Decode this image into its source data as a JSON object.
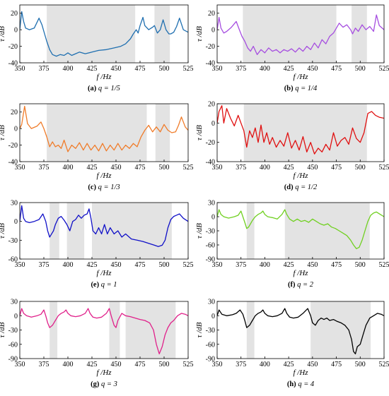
{
  "chart_data": [
    {
      "type": "line",
      "caption_tag": "(a)",
      "caption_text": "q = 1/5",
      "xlabel": "f /Hz",
      "ylabel": "τ /dB",
      "xlim": [
        350,
        525
      ],
      "ylim": [
        -40,
        30
      ],
      "xticks": [
        350,
        375,
        400,
        425,
        450,
        475,
        500,
        525
      ],
      "yticks": [
        -40,
        -20,
        0,
        20
      ],
      "shaded": [
        [
          378,
          470
        ],
        [
          490,
          506
        ]
      ],
      "color": "#1f6fb0",
      "x": [
        350,
        352,
        354,
        356,
        360,
        365,
        370,
        373,
        375,
        378,
        381,
        384,
        388,
        392,
        396,
        400,
        404,
        408,
        412,
        418,
        425,
        432,
        440,
        448,
        455,
        460,
        465,
        468,
        471,
        473,
        475,
        478,
        480,
        484,
        488,
        490,
        493,
        496,
        499,
        502,
        505,
        507,
        510,
        513,
        516,
        520,
        525
      ],
      "y": [
        0,
        22,
        10,
        2,
        0,
        2,
        14,
        6,
        -2,
        -14,
        -24,
        -30,
        -32,
        -30,
        -31,
        -28,
        -31,
        -29,
        -27,
        -29,
        -27,
        -25,
        -24,
        -22,
        -20,
        -17,
        -11,
        -5,
        0,
        -4,
        5,
        15,
        5,
        0,
        3,
        5,
        -4,
        0,
        12,
        0,
        -5,
        -5,
        -3,
        4,
        14,
        0,
        -3
      ]
    },
    {
      "type": "line",
      "caption_tag": "(b)",
      "caption_text": "q = 1/4",
      "xlabel": "f /Hz",
      "ylabel": "τ /dB",
      "xlim": [
        350,
        525
      ],
      "ylim": [
        -40,
        30
      ],
      "xticks": [
        350,
        375,
        400,
        425,
        450,
        475,
        500,
        525
      ],
      "yticks": [
        -40,
        -20,
        0,
        20
      ],
      "shaded": [
        [
          377,
          475
        ],
        [
          491,
          507
        ]
      ],
      "color": "#a64ee0",
      "x": [
        350,
        352,
        354,
        357,
        360,
        365,
        370,
        373,
        376,
        379,
        382,
        385,
        388,
        392,
        396,
        400,
        404,
        408,
        412,
        416,
        420,
        424,
        428,
        432,
        436,
        440,
        444,
        448,
        452,
        456,
        460,
        464,
        468,
        472,
        475,
        478,
        482,
        486,
        490,
        492,
        495,
        498,
        502,
        506,
        510,
        514,
        517,
        520,
        525
      ],
      "y": [
        0,
        15,
        2,
        -4,
        -2,
        3,
        10,
        1,
        -8,
        -14,
        -22,
        -26,
        -20,
        -30,
        -24,
        -28,
        -22,
        -26,
        -24,
        -28,
        -24,
        -26,
        -23,
        -27,
        -22,
        -26,
        -20,
        -24,
        -16,
        -22,
        -12,
        -17,
        -8,
        -4,
        2,
        8,
        3,
        6,
        0,
        -5,
        2,
        -2,
        6,
        0,
        4,
        -2,
        18,
        5,
        0
      ]
    },
    {
      "type": "line",
      "caption_tag": "(c)",
      "caption_text": "q = 1/3",
      "xlabel": "f /Hz",
      "ylabel": "τ /dB",
      "xlim": [
        350,
        525
      ],
      "ylim": [
        -40,
        30
      ],
      "xticks": [
        350,
        375,
        400,
        425,
        450,
        475,
        500,
        525
      ],
      "yticks": [
        -40,
        -20,
        0,
        20
      ],
      "shaded": [
        [
          378,
          482
        ],
        [
          491,
          506
        ]
      ],
      "color": "#f07c2a",
      "x": [
        350,
        352,
        355,
        358,
        362,
        368,
        372,
        375,
        378,
        381,
        384,
        387,
        390,
        393,
        396,
        400,
        404,
        408,
        412,
        416,
        420,
        424,
        428,
        432,
        436,
        440,
        444,
        448,
        452,
        456,
        460,
        464,
        468,
        472,
        476,
        480,
        484,
        488,
        492,
        496,
        500,
        504,
        508,
        512,
        515,
        518,
        522,
        525
      ],
      "y": [
        0,
        5,
        27,
        6,
        0,
        3,
        8,
        0,
        -10,
        -22,
        -16,
        -22,
        -20,
        -24,
        -14,
        -28,
        -20,
        -24,
        -17,
        -26,
        -18,
        -26,
        -20,
        -27,
        -18,
        -27,
        -20,
        -26,
        -18,
        -26,
        -20,
        -24,
        -18,
        -22,
        -10,
        -2,
        4,
        -4,
        2,
        -4,
        5,
        -2,
        -5,
        -4,
        4,
        14,
        2,
        -2
      ]
    },
    {
      "type": "line",
      "caption_tag": "(d)",
      "caption_text": "q = 1/2",
      "xlabel": "f /Hz",
      "ylabel": "τ /dB",
      "xlim": [
        350,
        525
      ],
      "ylim": [
        -40,
        20
      ],
      "xticks": [
        350,
        375,
        400,
        425,
        450,
        475,
        500,
        525
      ],
      "yticks": [
        -40,
        -20,
        0,
        20
      ],
      "shaded": [
        [
          378,
          507
        ]
      ],
      "color": "#e01010",
      "x": [
        350,
        352,
        355,
        357,
        360,
        364,
        368,
        372,
        375,
        378,
        381,
        384,
        387,
        390,
        393,
        396,
        399,
        402,
        405,
        408,
        412,
        416,
        420,
        424,
        428,
        432,
        436,
        440,
        444,
        448,
        452,
        456,
        460,
        464,
        468,
        472,
        476,
        480,
        484,
        488,
        492,
        496,
        500,
        504,
        508,
        512,
        516,
        520,
        525
      ],
      "y": [
        0,
        12,
        18,
        0,
        15,
        5,
        -3,
        8,
        0,
        -8,
        -25,
        -8,
        -15,
        -5,
        -20,
        -2,
        -20,
        -10,
        -22,
        -15,
        -25,
        -18,
        -24,
        -10,
        -26,
        -18,
        -28,
        -14,
        -30,
        -20,
        -32,
        -26,
        -30,
        -22,
        -28,
        -10,
        -24,
        -18,
        -15,
        -22,
        -5,
        -16,
        -20,
        -10,
        10,
        12,
        8,
        6,
        5
      ]
    },
    {
      "type": "line",
      "caption_tag": "(e)",
      "caption_text": "q = 1",
      "xlabel": "f /Hz",
      "ylabel": "τ /dB",
      "xlim": [
        350,
        525
      ],
      "ylim": [
        -60,
        30
      ],
      "xticks": [
        350,
        375,
        400,
        425,
        450,
        475,
        500,
        525
      ],
      "yticks": [
        -60,
        -30,
        0,
        30
      ],
      "shaded": [
        [
          381,
          391
        ],
        [
          399,
          417
        ],
        [
          425,
          508
        ]
      ],
      "color": "#1010c8",
      "x": [
        350,
        352,
        354,
        356,
        360,
        365,
        370,
        374,
        377,
        379,
        381,
        383,
        385,
        387,
        390,
        393,
        396,
        399,
        402,
        405,
        408,
        411,
        414,
        417,
        420,
        422,
        424,
        426,
        429,
        432,
        435,
        438,
        441,
        444,
        448,
        452,
        456,
        460,
        466,
        472,
        478,
        484,
        490,
        494,
        498,
        501,
        504,
        507,
        510,
        513,
        516,
        520,
        525
      ],
      "y": [
        0,
        25,
        5,
        0,
        -2,
        0,
        3,
        12,
        0,
        -15,
        -25,
        -20,
        -15,
        -5,
        5,
        8,
        2,
        -5,
        -15,
        0,
        3,
        10,
        5,
        10,
        12,
        20,
        5,
        -15,
        -20,
        -10,
        -20,
        -5,
        -20,
        -10,
        -20,
        -15,
        -25,
        -20,
        -28,
        -30,
        -32,
        -35,
        -38,
        -40,
        -38,
        -30,
        -10,
        3,
        8,
        10,
        12,
        5,
        0
      ]
    },
    {
      "type": "line",
      "caption_tag": "(f)",
      "caption_text": "q = 2",
      "xlabel": "f /Hz",
      "ylabel": "τ /dB",
      "xlim": [
        350,
        525
      ],
      "ylim": [
        -90,
        30
      ],
      "xticks": [
        350,
        375,
        400,
        425,
        450,
        475,
        500,
        525
      ],
      "yticks": [
        -90,
        -60,
        -30,
        0,
        30
      ],
      "shaded": [
        [
          381,
          389
        ],
        [
          421,
          510
        ]
      ],
      "color": "#70d020",
      "x": [
        350,
        352,
        354,
        357,
        362,
        368,
        372,
        375,
        377,
        379,
        381,
        383,
        385,
        387,
        390,
        393,
        396,
        398,
        400,
        403,
        408,
        413,
        418,
        421,
        423,
        426,
        430,
        434,
        438,
        442,
        446,
        450,
        454,
        458,
        462,
        466,
        470,
        474,
        478,
        482,
        486,
        490,
        493,
        496,
        499,
        502,
        505,
        508,
        511,
        514,
        517,
        521,
        525
      ],
      "y": [
        0,
        15,
        5,
        0,
        -3,
        0,
        3,
        12,
        0,
        -12,
        -25,
        -22,
        -15,
        -8,
        0,
        5,
        8,
        12,
        5,
        0,
        -2,
        -5,
        5,
        15,
        5,
        -5,
        -10,
        -5,
        -10,
        -8,
        -12,
        -5,
        -10,
        -15,
        -18,
        -15,
        -22,
        -25,
        -30,
        -35,
        -40,
        -50,
        -60,
        -68,
        -65,
        -50,
        -30,
        -10,
        3,
        8,
        10,
        5,
        0
      ]
    },
    {
      "type": "line",
      "caption_tag": "(g)",
      "caption_text": "q = 3",
      "xlabel": "f /Hz",
      "ylabel": "τ /dB",
      "xlim": [
        350,
        525
      ],
      "ylim": [
        -90,
        30
      ],
      "xticks": [
        350,
        375,
        400,
        425,
        450,
        475,
        500,
        525
      ],
      "yticks": [
        -90,
        -60,
        -30,
        0,
        30
      ],
      "shaded": [
        [
          381,
          389
        ],
        [
          443,
          454
        ],
        [
          460,
          512
        ]
      ],
      "color": "#e0208a",
      "x": [
        350,
        352,
        354,
        357,
        362,
        368,
        372,
        375,
        377,
        379,
        381,
        384,
        387,
        390,
        393,
        396,
        398,
        400,
        403,
        408,
        413,
        418,
        421,
        423,
        426,
        430,
        435,
        440,
        443,
        445,
        448,
        450,
        452,
        456,
        460,
        465,
        470,
        475,
        480,
        485,
        489,
        492,
        495,
        498,
        501,
        504,
        507,
        510,
        514,
        518,
        522,
        525
      ],
      "y": [
        0,
        15,
        5,
        0,
        -3,
        0,
        3,
        12,
        0,
        -15,
        -25,
        -20,
        -10,
        0,
        5,
        8,
        12,
        5,
        0,
        -2,
        0,
        5,
        15,
        5,
        -3,
        -5,
        -3,
        5,
        15,
        0,
        -20,
        -25,
        -10,
        5,
        0,
        -2,
        -5,
        -8,
        -10,
        -15,
        -30,
        -60,
        -80,
        -65,
        -40,
        -25,
        -15,
        -10,
        0,
        5,
        3,
        0
      ]
    },
    {
      "type": "line",
      "caption_tag": "(h)",
      "caption_text": "q = 4",
      "xlabel": "f /Hz",
      "ylabel": "τ /dB",
      "xlim": [
        350,
        525
      ],
      "ylim": [
        -90,
        30
      ],
      "xticks": [
        350,
        375,
        400,
        425,
        450,
        475,
        500,
        525
      ],
      "yticks": [
        -90,
        -60,
        -30,
        0,
        30
      ],
      "shaded": [
        [
          381,
          389
        ],
        [
          448,
          511
        ]
      ],
      "color": "#000000",
      "x": [
        350,
        352,
        355,
        360,
        366,
        370,
        374,
        377,
        379,
        381,
        384,
        387,
        390,
        393,
        396,
        398,
        400,
        403,
        408,
        413,
        418,
        421,
        423,
        426,
        430,
        435,
        440,
        445,
        448,
        450,
        453,
        456,
        459,
        462,
        465,
        468,
        472,
        476,
        480,
        484,
        488,
        491,
        493,
        495,
        497,
        500,
        503,
        506,
        510,
        514,
        518,
        522,
        525
      ],
      "y": [
        0,
        12,
        3,
        0,
        2,
        5,
        12,
        3,
        -10,
        -25,
        -20,
        -10,
        0,
        5,
        8,
        12,
        5,
        0,
        -2,
        0,
        5,
        15,
        5,
        -3,
        -5,
        -3,
        5,
        15,
        0,
        -15,
        -20,
        -10,
        -5,
        -8,
        -5,
        -10,
        -8,
        -12,
        -15,
        -20,
        -30,
        -50,
        -75,
        -80,
        -65,
        -60,
        -40,
        -20,
        -5,
        0,
        5,
        3,
        0
      ]
    }
  ]
}
